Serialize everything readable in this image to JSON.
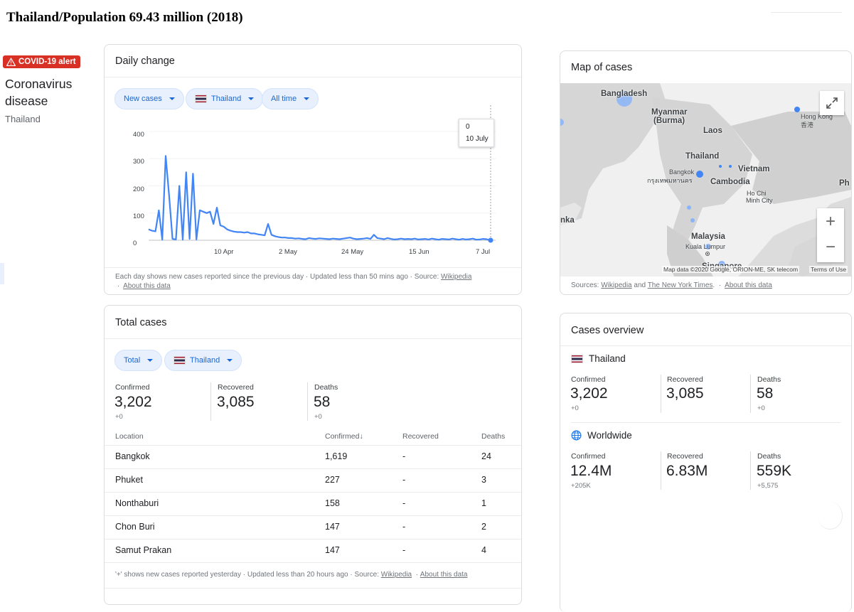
{
  "page_title": "Thailand/Population 69.43 million (2018)",
  "sidebar": {
    "alert_label": "COVID-19 alert",
    "disease_title": "Coronavirus disease",
    "country": "Thailand"
  },
  "daily_change": {
    "title": "Daily change",
    "chips": [
      "New cases",
      "Thailand",
      "All time"
    ],
    "y_ticks": [
      "400",
      "300",
      "200",
      "100",
      "0"
    ],
    "x_ticks": [
      "10 Apr",
      "2 May",
      "24 May",
      "15 Jun",
      "7 Jul"
    ],
    "tooltip_value": "0",
    "tooltip_date": "10 July",
    "footer_text": "Each day shows new cases reported since the previous day · Updated less than 50 mins ago · Source:",
    "footer_source": "Wikipedia",
    "footer_about": "About this data"
  },
  "chart_data": {
    "type": "line",
    "title": "",
    "xlabel": "",
    "ylabel": "",
    "ylim": [
      0,
      400
    ],
    "x_tick_labels": [
      "10 Apr",
      "2 May",
      "24 May",
      "15 Jun",
      "7 Jul"
    ],
    "series": [
      {
        "values": [
          40,
          35,
          33,
          110,
          2,
          310,
          165,
          5,
          3,
          200,
          2,
          250,
          5,
          245,
          3,
          110,
          105,
          100,
          105,
          60,
          120,
          55,
          50,
          40,
          35,
          32,
          30,
          30,
          28,
          30,
          25,
          25,
          22,
          20,
          18,
          60,
          20,
          15,
          12,
          10,
          10,
          8,
          8,
          6,
          7,
          5,
          4,
          8,
          6,
          5,
          7,
          6,
          5,
          4,
          6,
          5,
          4,
          6,
          8,
          10,
          6,
          4,
          5,
          6,
          8,
          5,
          20,
          8,
          6,
          4,
          8,
          5,
          3,
          4,
          6,
          4,
          5,
          4,
          6,
          3,
          4,
          5,
          3,
          6,
          4,
          2,
          5,
          4,
          3,
          6,
          4,
          2,
          5,
          3,
          4,
          6,
          2,
          3,
          5,
          4,
          0
        ]
      }
    ],
    "color": "#4285f4",
    "grid": true,
    "highlight": {
      "label": "10 July",
      "value": 0
    }
  },
  "total_cases": {
    "title": "Total cases",
    "chips": [
      "Total",
      "Thailand"
    ],
    "stats": [
      {
        "label": "Confirmed",
        "value": "3,202",
        "delta": "+0"
      },
      {
        "label": "Recovered",
        "value": "3,085",
        "delta": ""
      },
      {
        "label": "Deaths",
        "value": "58",
        "delta": "+0"
      }
    ],
    "table_headers": [
      "Location",
      "Confirmed",
      "Recovered",
      "Deaths"
    ],
    "sort_indicator": "↓",
    "rows": [
      {
        "location": "Bangkok",
        "confirmed": "1,619",
        "recovered": "-",
        "deaths": "24"
      },
      {
        "location": "Phuket",
        "confirmed": "227",
        "recovered": "-",
        "deaths": "3"
      },
      {
        "location": "Nonthaburi",
        "confirmed": "158",
        "recovered": "-",
        "deaths": "1"
      },
      {
        "location": "Chon Buri",
        "confirmed": "147",
        "recovered": "-",
        "deaths": "2"
      },
      {
        "location": "Samut Prakan",
        "confirmed": "147",
        "recovered": "-",
        "deaths": "4"
      }
    ],
    "footer_text": "'+' shows new cases reported yesterday · Updated less than 20 hours ago · Source:",
    "footer_source": "Wikipedia",
    "footer_about": "About this data"
  },
  "map": {
    "title": "Map of cases",
    "labels": [
      "Bangladesh",
      "Myanmar",
      "(Burma)",
      "Laos",
      "Thailand",
      "Vietnam",
      "Cambodia",
      "Malaysia",
      "Singapore",
      "Ph",
      "nka"
    ],
    "small_labels": [
      "Bangkok",
      "กรุงเทพมหานคร",
      "Ho Chi",
      "Minh City",
      "Kuala Lumpur",
      "Hong Kong",
      "香港"
    ],
    "attribution": "Map data ©2020 Google, ORION-ME, SK telecom",
    "terms": "Terms of Use",
    "zoom_in": "+",
    "zoom_out": "−",
    "sources_prefix": "Sources:",
    "source_1": "Wikipedia",
    "sources_and": "and",
    "source_2": "The New York Times",
    "about": "About this data"
  },
  "overview": {
    "title": "Cases overview",
    "thailand": {
      "name": "Thailand",
      "stats": [
        {
          "label": "Confirmed",
          "value": "3,202",
          "delta": "+0"
        },
        {
          "label": "Recovered",
          "value": "3,085",
          "delta": ""
        },
        {
          "label": "Deaths",
          "value": "58",
          "delta": "+0"
        }
      ]
    },
    "worldwide": {
      "name": "Worldwide",
      "stats": [
        {
          "label": "Confirmed",
          "value": "12.4M",
          "delta": "+205K"
        },
        {
          "label": "Recovered",
          "value": "6.83M",
          "delta": ""
        },
        {
          "label": "Deaths",
          "value": "559K",
          "delta": "+5,575"
        }
      ]
    }
  }
}
